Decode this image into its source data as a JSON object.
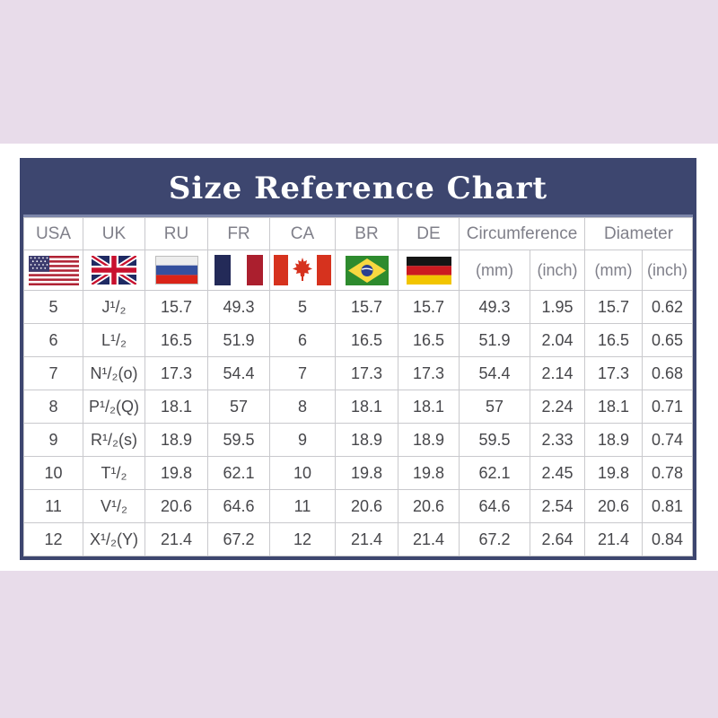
{
  "title": "Size Reference Chart",
  "theme": {
    "background_pink": "#e8dcea",
    "panel_white": "#ffffff",
    "navy": "#3d466f",
    "title_underline": "#7d86aa",
    "grid_line": "#c9c9cd",
    "header_text": "#80808a",
    "data_text": "#47474b"
  },
  "flag_icons": [
    "usa-flag",
    "uk-flag",
    "ru-flag",
    "fr-flag",
    "ca-flag",
    "br-flag",
    "de-flag"
  ],
  "chart_data": {
    "type": "table",
    "title": "Size Reference Chart",
    "country_headers": [
      "USA",
      "UK",
      "RU",
      "FR",
      "CA",
      "BR",
      "DE"
    ],
    "group_headers": [
      "Circumference",
      "Diameter"
    ],
    "sub_headers": [
      "(mm)",
      "(inch)",
      "(mm)",
      "(inch)"
    ],
    "columns_full": [
      "USA",
      "UK",
      "RU",
      "FR",
      "CA",
      "BR",
      "DE",
      "Circumference (mm)",
      "Circumference (inch)",
      "Diameter (mm)",
      "Diameter (inch)"
    ],
    "rows": [
      [
        "5",
        "J¹/₂",
        "15.7",
        "49.3",
        "5",
        "15.7",
        "15.7",
        "49.3",
        "1.95",
        "15.7",
        "0.62"
      ],
      [
        "6",
        "L¹/₂",
        "16.5",
        "51.9",
        "6",
        "16.5",
        "16.5",
        "51.9",
        "2.04",
        "16.5",
        "0.65"
      ],
      [
        "7",
        "N¹/₂(o)",
        "17.3",
        "54.4",
        "7",
        "17.3",
        "17.3",
        "54.4",
        "2.14",
        "17.3",
        "0.68"
      ],
      [
        "8",
        "P¹/₂(Q)",
        "18.1",
        "57",
        "8",
        "18.1",
        "18.1",
        "57",
        "2.24",
        "18.1",
        "0.71"
      ],
      [
        "9",
        "R¹/₂(s)",
        "18.9",
        "59.5",
        "9",
        "18.9",
        "18.9",
        "59.5",
        "2.33",
        "18.9",
        "0.74"
      ],
      [
        "10",
        "T¹/₂",
        "19.8",
        "62.1",
        "10",
        "19.8",
        "19.8",
        "62.1",
        "2.45",
        "19.8",
        "0.78"
      ],
      [
        "11",
        "V¹/₂",
        "20.6",
        "64.6",
        "11",
        "20.6",
        "20.6",
        "64.6",
        "2.54",
        "20.6",
        "0.81"
      ],
      [
        "12",
        "X¹/₂(Y)",
        "21.4",
        "67.2",
        "12",
        "21.4",
        "21.4",
        "67.2",
        "2.64",
        "21.4",
        "0.84"
      ]
    ]
  }
}
